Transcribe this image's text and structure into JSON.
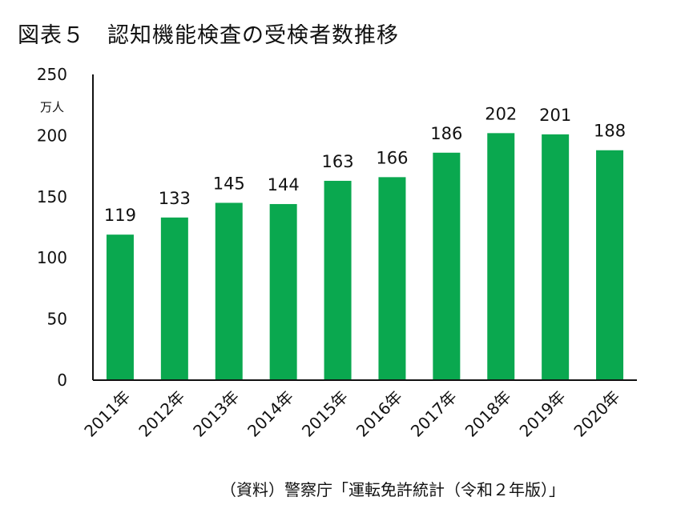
{
  "header": {
    "title": "図表５　認知機能検査の受検者数推移"
  },
  "footer": {
    "source": "（資料）警察庁「運転免許統計（令和２年版）」"
  },
  "colors": {
    "bar": "#0aa84f",
    "axis": "#111111",
    "text": "#111111"
  },
  "chart_data": {
    "type": "bar",
    "title": "図表５　認知機能検査の受検者数推移",
    "xlabel": "",
    "ylabel": "",
    "y_unit": "万人",
    "categories": [
      "2011年",
      "2012年",
      "2013年",
      "2014年",
      "2015年",
      "2016年",
      "2017年",
      "2018年",
      "2019年",
      "2020年"
    ],
    "values": [
      119,
      133,
      145,
      144,
      163,
      166,
      186,
      202,
      201,
      188
    ],
    "ylim": [
      0,
      250
    ],
    "yticks": [
      0,
      50,
      100,
      150,
      200,
      250
    ],
    "grid": false,
    "legend": "none",
    "data_labels": true
  }
}
